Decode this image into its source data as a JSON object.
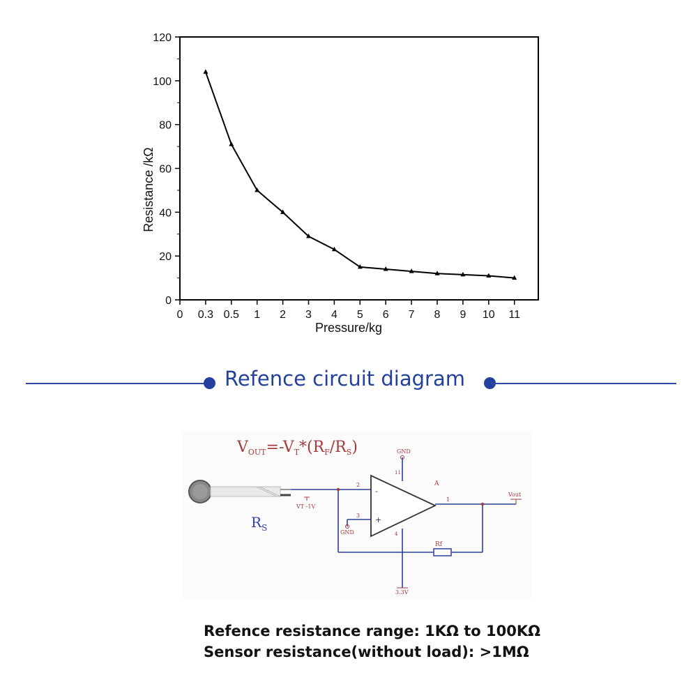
{
  "chart_data": {
    "type": "line",
    "title": "",
    "xlabel": "Pressure/kg",
    "ylabel": "Resistance /kΩ",
    "x_tick_labels": [
      "0",
      "0.3",
      "0.5",
      "1",
      "2",
      "3",
      "4",
      "5",
      "6",
      "7",
      "8",
      "9",
      "10",
      "11"
    ],
    "y_ticks": [
      0,
      20,
      40,
      60,
      80,
      100,
      120
    ],
    "ylim": [
      0,
      120
    ],
    "x_is_categorical_ticks": true,
    "series": [
      {
        "x": [
          "0.3",
          "0.5",
          "1",
          "2",
          "3",
          "4",
          "5",
          "6",
          "7",
          "8",
          "9",
          "10",
          "11"
        ],
        "values": [
          104,
          71,
          50,
          40,
          29,
          23,
          15,
          14,
          13,
          12,
          11.5,
          11,
          10
        ]
      }
    ],
    "marker": "triangle",
    "grid": false,
    "line_color": "#000000"
  },
  "section": {
    "title": "Refence circuit diagram",
    "accent_color": "#23409c"
  },
  "circuit": {
    "formula_main": "V",
    "formula_sub_out": "OUT",
    "formula_mid": "=-V",
    "formula_sub_t": "T",
    "formula_paren_open": "*(R",
    "formula_sub_f": "F",
    "formula_slash": "/R",
    "formula_sub_s": "S",
    "formula_close": ")",
    "rs_label": "R",
    "rs_sub": "S",
    "gnd_top": "GND",
    "gnd_left": "GND",
    "vt_label": "VT -1V",
    "pin2": "2",
    "pin3": "3",
    "pin1": "1",
    "pin11": "11",
    "pin4": "4",
    "minus_sign": "-",
    "plus_sign": "+",
    "amp_label": "A",
    "vout_label": "Vout",
    "rf_label": "Rf",
    "supply_label": "3.3V",
    "wire_color": "#2c3f9c",
    "text_color": "#a33b3b"
  },
  "notes": {
    "line1": "Refence resistance range: 1KΩ to 100KΩ",
    "line2": "Sensor resistance(without load): >1MΩ"
  }
}
